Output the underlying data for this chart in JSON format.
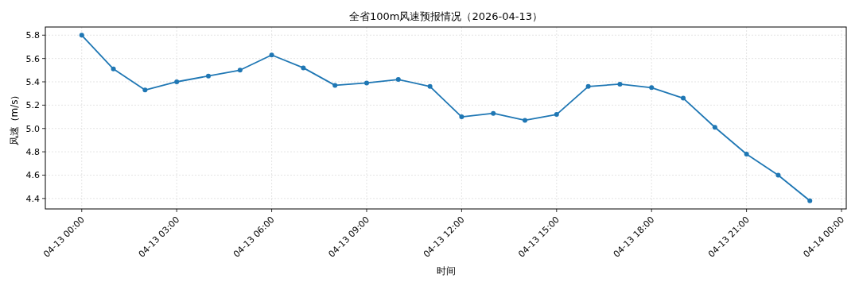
{
  "chart_data": {
    "type": "line",
    "title": "全省100m风速预报情况（2026-04-13）",
    "xlabel": "时间",
    "ylabel": "风速（m/s）",
    "x": [
      "2026-04-13T00:00",
      "2026-04-13T01:00",
      "2026-04-13T02:00",
      "2026-04-13T03:00",
      "2026-04-13T04:00",
      "2026-04-13T05:00",
      "2026-04-13T06:00",
      "2026-04-13T07:00",
      "2026-04-13T08:00",
      "2026-04-13T09:00",
      "2026-04-13T10:00",
      "2026-04-13T11:00",
      "2026-04-13T12:00",
      "2026-04-13T13:00",
      "2026-04-13T14:00",
      "2026-04-13T15:00",
      "2026-04-13T16:00",
      "2026-04-13T17:00",
      "2026-04-13T18:00",
      "2026-04-13T19:00",
      "2026-04-13T20:00",
      "2026-04-13T21:00",
      "2026-04-13T22:00",
      "2026-04-13T23:00"
    ],
    "series": [
      {
        "color": "#1f77b4",
        "values": [
          5.8,
          5.51,
          5.33,
          5.4,
          5.45,
          5.5,
          5.63,
          5.52,
          5.37,
          5.39,
          5.42,
          5.36,
          5.1,
          5.13,
          5.07,
          5.12,
          5.36,
          5.38,
          5.35,
          5.26,
          5.01,
          4.78,
          4.6,
          4.38
        ]
      }
    ],
    "xlim": [
      "2026-04-12T22:51",
      "2026-04-14T00:09"
    ],
    "xticks": [
      {
        "value": "2026-04-13T00:00",
        "label": "04-13 00:00"
      },
      {
        "value": "2026-04-13T03:00",
        "label": "04-13 03:00"
      },
      {
        "value": "2026-04-13T06:00",
        "label": "04-13 06:00"
      },
      {
        "value": "2026-04-13T09:00",
        "label": "04-13 09:00"
      },
      {
        "value": "2026-04-13T12:00",
        "label": "04-13 12:00"
      },
      {
        "value": "2026-04-13T15:00",
        "label": "04-13 15:00"
      },
      {
        "value": "2026-04-13T18:00",
        "label": "04-13 18:00"
      },
      {
        "value": "2026-04-13T21:00",
        "label": "04-13 21:00"
      },
      {
        "value": "2026-04-14T00:00",
        "label": "04-14 00:00"
      }
    ],
    "ylim": [
      4.31,
      5.87
    ],
    "yticks": [
      4.4,
      4.6,
      4.8,
      {
        "value": 5,
        "label": "5.0"
      },
      5.2,
      5.4,
      5.6,
      5.8
    ],
    "grid": true,
    "marker": "circle",
    "line_style": "solid"
  }
}
